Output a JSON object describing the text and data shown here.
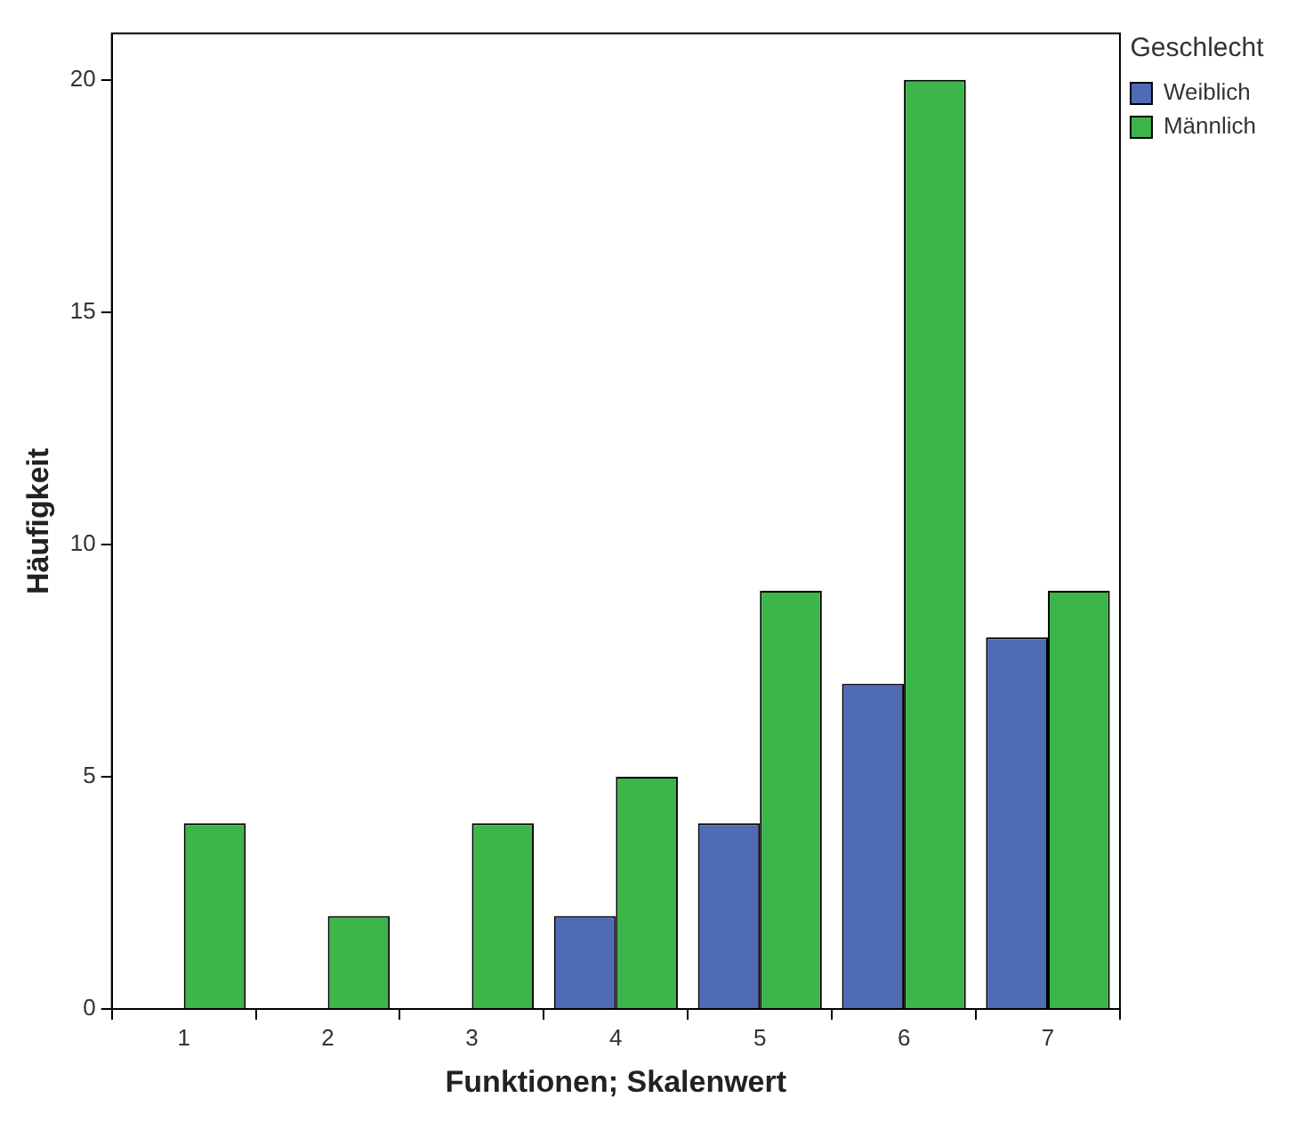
{
  "chart_data": {
    "type": "bar",
    "xlabel": "Funktionen; Skalenwert",
    "ylabel": "Häufigkeit",
    "legend_title": "Geschlecht",
    "categories": [
      "1",
      "2",
      "3",
      "4",
      "5",
      "6",
      "7"
    ],
    "series": [
      {
        "name": "Weiblich",
        "color": "#4f6bb4",
        "values": [
          null,
          null,
          null,
          2,
          4,
          7,
          8
        ]
      },
      {
        "name": "Männlich",
        "color": "#3cb54a",
        "values": [
          4,
          2,
          4,
          5,
          9,
          20,
          9
        ]
      }
    ],
    "ylim": [
      0,
      21
    ],
    "yticks": [
      0,
      5,
      10,
      15,
      20
    ],
    "grid": false,
    "legend": "top right"
  }
}
